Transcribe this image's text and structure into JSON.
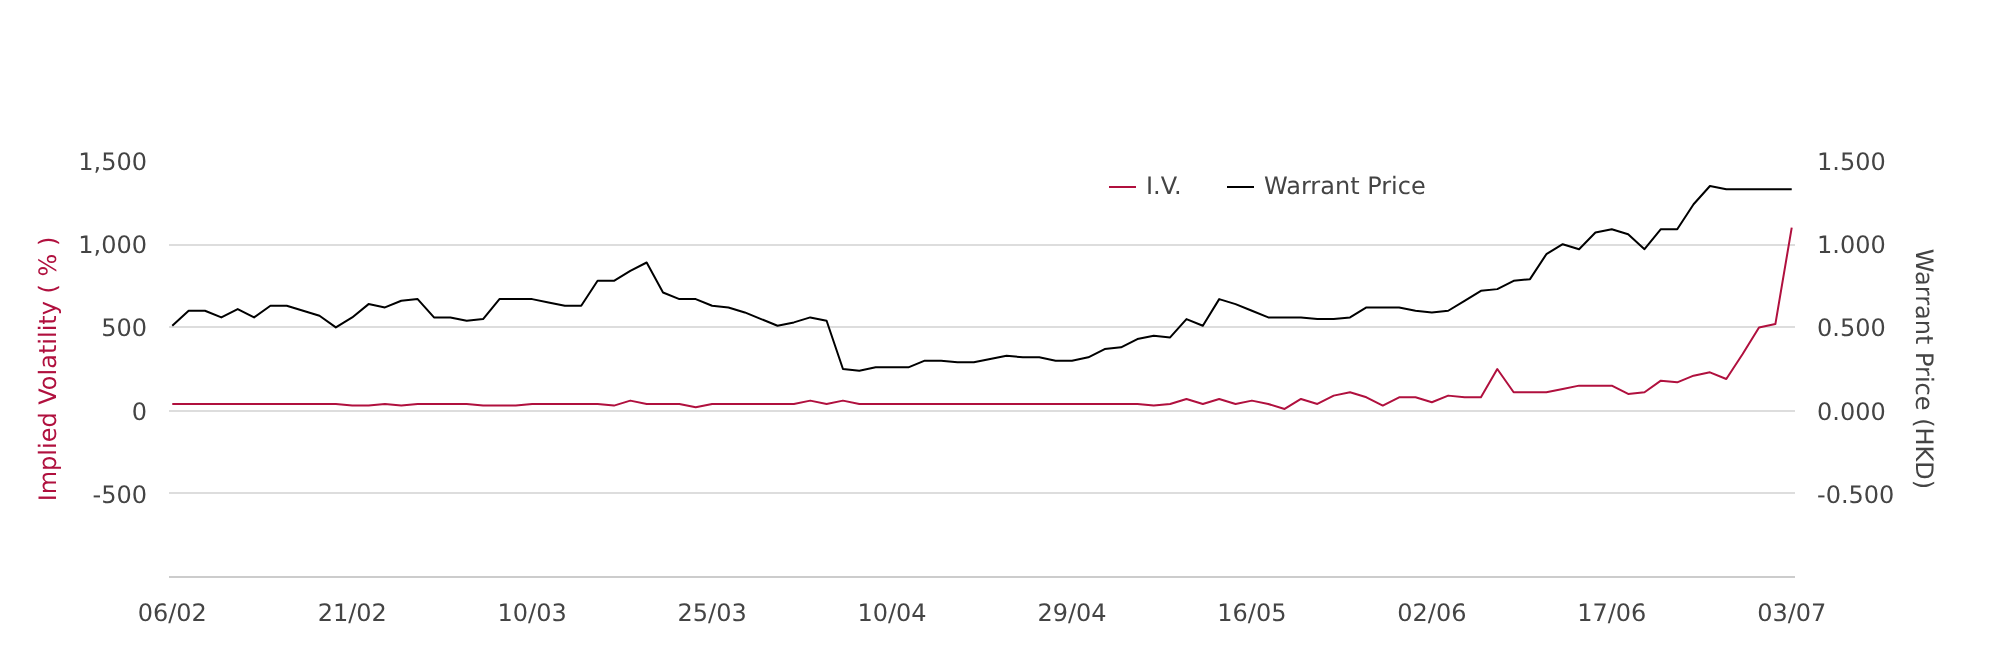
{
  "chart_data": {
    "type": "line",
    "categories": [
      "06/02",
      null,
      null,
      null,
      null,
      null,
      null,
      null,
      null,
      null,
      null,
      "21/02",
      null,
      null,
      null,
      null,
      null,
      null,
      null,
      null,
      null,
      null,
      "10/03",
      null,
      null,
      null,
      null,
      null,
      null,
      null,
      null,
      null,
      null,
      "25/03",
      null,
      null,
      null,
      null,
      null,
      null,
      null,
      null,
      null,
      null,
      "10/04",
      null,
      null,
      null,
      null,
      null,
      null,
      null,
      null,
      null,
      null,
      "29/04",
      null,
      null,
      null,
      null,
      null,
      null,
      null,
      null,
      null,
      null,
      "16/05",
      null,
      null,
      null,
      null,
      null,
      null,
      null,
      null,
      null,
      null,
      "02/06",
      null,
      null,
      null,
      null,
      null,
      null,
      null,
      null,
      null,
      null,
      "17/06",
      null,
      null,
      null,
      null,
      null,
      null,
      null,
      null,
      null,
      null,
      "03/07"
    ],
    "series": [
      {
        "name": "I.V.",
        "color": "#b0103e",
        "values": [
          40,
          40,
          40,
          40,
          40,
          40,
          40,
          40,
          40,
          40,
          40,
          30,
          30,
          40,
          30,
          40,
          40,
          40,
          40,
          30,
          30,
          30,
          40,
          40,
          40,
          40,
          40,
          30,
          60,
          40,
          40,
          40,
          20,
          40,
          40,
          40,
          40,
          40,
          40,
          60,
          40,
          60,
          40,
          40,
          40,
          40,
          40,
          40,
          40,
          40,
          40,
          40,
          40,
          40,
          40,
          40,
          40,
          40,
          40,
          40,
          30,
          40,
          70,
          40,
          70,
          40,
          60,
          40,
          10,
          70,
          40,
          90,
          110,
          80,
          30,
          80,
          80,
          50,
          90,
          80,
          80,
          250,
          110,
          110,
          110,
          130,
          150,
          150,
          150,
          100,
          110,
          180,
          170,
          210,
          230,
          190,
          340,
          500,
          520,
          1100
        ]
      },
      {
        "name": "Warrant Price",
        "color": "#000000",
        "axis": "y2",
        "values": [
          0.51,
          0.6,
          0.6,
          0.56,
          0.61,
          0.56,
          0.63,
          0.63,
          0.6,
          0.57,
          0.5,
          0.56,
          0.64,
          0.62,
          0.66,
          0.67,
          0.56,
          0.56,
          0.54,
          0.55,
          0.67,
          0.67,
          0.67,
          0.65,
          0.63,
          0.63,
          0.78,
          0.78,
          0.84,
          0.89,
          0.71,
          0.67,
          0.67,
          0.63,
          0.62,
          0.59,
          0.55,
          0.51,
          0.53,
          0.56,
          0.54,
          0.25,
          0.24,
          0.26,
          0.26,
          0.26,
          0.3,
          0.3,
          0.29,
          0.29,
          0.31,
          0.33,
          0.32,
          0.32,
          0.3,
          0.3,
          0.32,
          0.37,
          0.38,
          0.43,
          0.45,
          0.44,
          0.55,
          0.51,
          0.67,
          0.64,
          0.6,
          0.56,
          0.56,
          0.56,
          0.55,
          0.55,
          0.56,
          0.62,
          0.62,
          0.62,
          0.6,
          0.59,
          0.6,
          0.66,
          0.72,
          0.73,
          0.78,
          0.79,
          0.94,
          1.0,
          0.97,
          1.07,
          1.09,
          1.06,
          0.97,
          1.09,
          1.09,
          1.24,
          1.35,
          1.33,
          1.33,
          1.33,
          1.33,
          1.33
        ]
      }
    ],
    "ylabel": "Implied Volatility ( % )",
    "y2label": "Warrant Price (HKD)",
    "ylim": [
      -1000,
      1500
    ],
    "yticks": [
      {
        "value": -1000,
        "label": null
      },
      {
        "value": -500,
        "label": "-500"
      },
      {
        "value": 0,
        "label": "0"
      },
      {
        "value": 500,
        "label": "500"
      },
      {
        "value": 1000,
        "label": "1,000"
      },
      {
        "value": 1500,
        "label": "1,500"
      }
    ],
    "y2lim": [
      -1.0,
      1.5
    ],
    "y2ticks": [
      {
        "value": -0.5,
        "label": "-0.500"
      },
      {
        "value": 0,
        "label": "0.000"
      },
      {
        "value": 0.5,
        "label": "0.500"
      },
      {
        "value": 1.0,
        "label": "1.000"
      },
      {
        "value": 1.5,
        "label": "1.500"
      }
    ],
    "grid": "y",
    "legend": "top right"
  }
}
